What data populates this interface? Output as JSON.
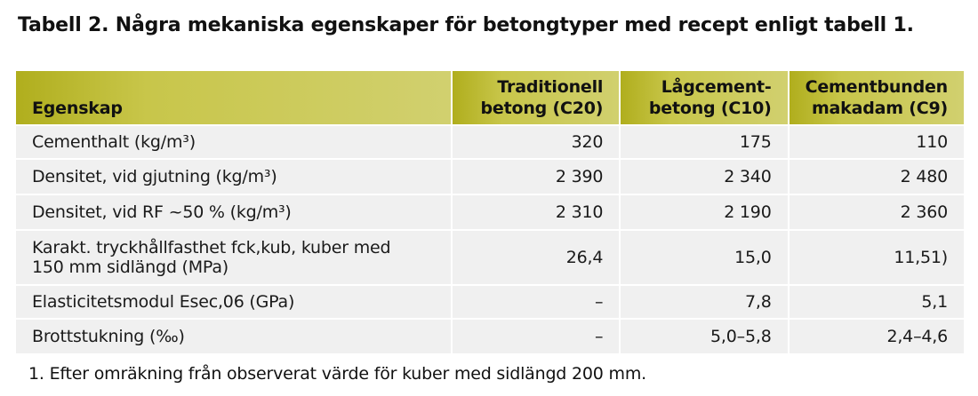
{
  "caption": "Tabell 2. Några mekaniska egenskaper för betongtyper med recept enligt tabell 1.",
  "table": {
    "headers": [
      {
        "lines": [
          "Egenskap"
        ]
      },
      {
        "lines": [
          "Traditionell",
          "betong (C20)"
        ]
      },
      {
        "lines": [
          "Lågcement-",
          "betong (C10)"
        ]
      },
      {
        "lines": [
          "Cementbunden",
          "makadam (C9)"
        ]
      }
    ],
    "rows": [
      {
        "label_lines": [
          "Cementhalt (kg/m³)"
        ],
        "c20": "320",
        "c10": "175",
        "c9": "110"
      },
      {
        "label_lines": [
          "Densitet, vid gjutning (kg/m³)"
        ],
        "c20": "2 390",
        "c10": "2 340",
        "c9": "2 480"
      },
      {
        "label_lines": [
          "Densitet, vid RF ~50 % (kg/m³)"
        ],
        "c20": "2 310",
        "c10": "2 190",
        "c9": "2 360"
      },
      {
        "label_lines": [
          "Karakt. tryckhållfasthet fck,kub, kuber med",
          "150 mm sidlängd (MPa)"
        ],
        "c20": "26,4",
        "c10": "15,0",
        "c9": "11,51)"
      },
      {
        "label_lines": [
          "Elasticitetsmodul Esec,06 (GPa)"
        ],
        "c20": "–",
        "c10": "7,8",
        "c9": "5,1"
      },
      {
        "label_lines": [
          "Brottstukning (‰)"
        ],
        "c20": "–",
        "c10": "5,0–5,8",
        "c9": "2,4–4,6"
      }
    ]
  },
  "footnote": "1.  Efter omräkning från observerat värde för kuber med sidlängd 200 mm."
}
